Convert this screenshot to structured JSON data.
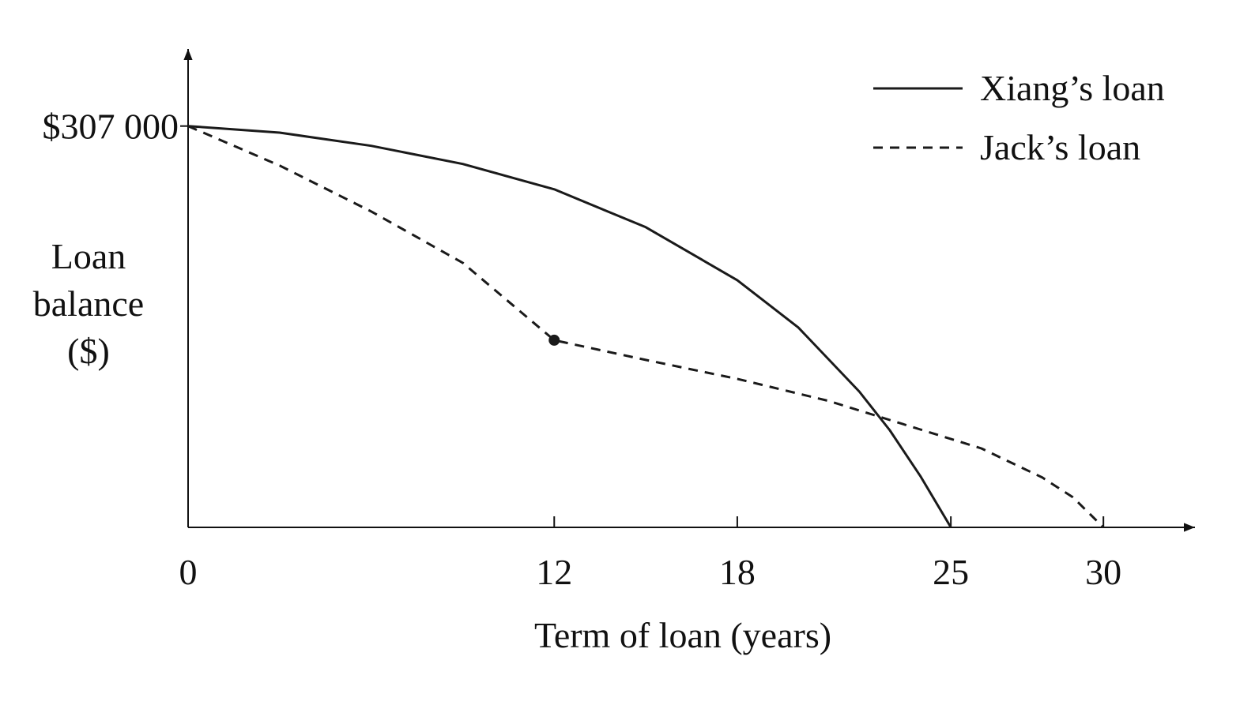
{
  "chart_data": {
    "type": "line",
    "xlabel": "Term of loan (years)",
    "ylabel": [
      "Loan",
      "balance",
      "($)"
    ],
    "xlim": [
      0,
      33
    ],
    "ylim": [
      0,
      366000
    ],
    "xticks": [
      0,
      12,
      18,
      25,
      30
    ],
    "yticks": [
      {
        "value": 307000,
        "label": "$307 000"
      }
    ],
    "grid": false,
    "legend": "top-right",
    "series": [
      {
        "name": "Xiang’s loan",
        "color": "#1a1a1a",
        "dashed": false,
        "x": [
          0,
          3,
          6,
          9,
          12,
          15,
          18,
          20,
          22,
          23,
          24,
          25
        ],
        "values": [
          307000,
          302000,
          291900,
          278000,
          258600,
          229600,
          189100,
          152900,
          103900,
          74300,
          39300,
          0
        ]
      },
      {
        "name": "Jack’s loan",
        "color": "#1a1a1a",
        "dashed": true,
        "highlight_index": 4,
        "x": [
          0,
          3,
          6,
          9,
          12,
          15,
          18,
          21,
          24,
          26,
          28,
          29,
          30
        ],
        "values": [
          307000,
          276800,
          241700,
          202400,
          143200,
          128100,
          113600,
          96700,
          74900,
          60400,
          38100,
          23000,
          0
        ]
      }
    ]
  }
}
